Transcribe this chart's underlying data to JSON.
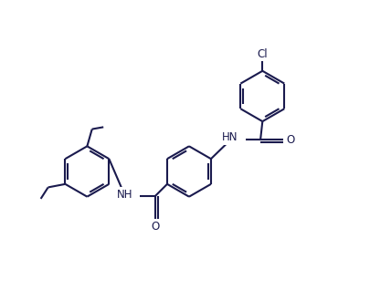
{
  "background_color": "#ffffff",
  "line_color": "#1a1a4e",
  "text_color": "#1a1a4e",
  "bond_lw": 1.5,
  "font_size": 8.5,
  "figsize": [
    4.05,
    3.18
  ],
  "dpi": 100,
  "ring_r": 0.62,
  "xlim": [
    0.0,
    8.5
  ],
  "ylim": [
    0.5,
    7.5
  ]
}
